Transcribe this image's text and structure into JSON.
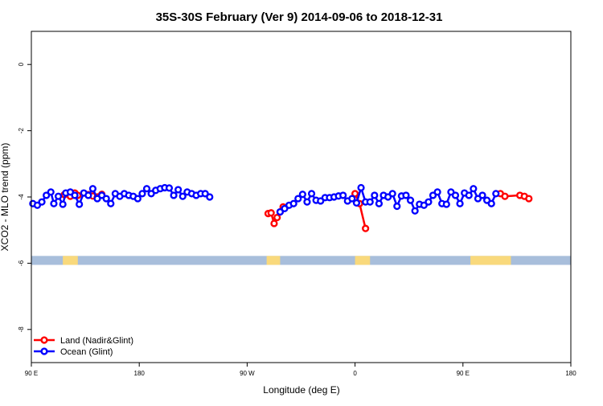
{
  "chart_data": {
    "type": "line",
    "title": "35S-30S February (Ver 9)   2014-09-06 to 2018-12-31",
    "xlabel": "Longitude (deg E)",
    "ylabel": "XCO2 - MLO trend (ppm)",
    "xlim": [
      90,
      450
    ],
    "ylim": [
      -9,
      1
    ],
    "xticks": [
      {
        "value": 90,
        "label": "90 E"
      },
      {
        "value": 162,
        "label": "180"
      },
      {
        "value": 234,
        "label": "90 W"
      },
      {
        "value": 306,
        "label": "0"
      },
      {
        "value": 378,
        "label": "90 E"
      },
      {
        "value": 450,
        "label": "180"
      }
    ],
    "yticks": [
      {
        "value": 0,
        "label": "0"
      },
      {
        "value": -2,
        "label": "-2"
      },
      {
        "value": -4,
        "label": "-4"
      },
      {
        "value": -6,
        "label": "-6"
      },
      {
        "value": -8,
        "label": "-8"
      }
    ],
    "legend_position": "bottom-left",
    "grid": false,
    "band": {
      "y_top": -5.78,
      "y_bottom": -6.05,
      "ocean_color": "#a8bedb",
      "land_color": "#f9d97c"
    },
    "land_masses": [
      {
        "x0": 111,
        "x1": 121
      },
      {
        "x0": 247,
        "x1": 256
      },
      {
        "x0": 306,
        "x1": 316
      },
      {
        "x0": 383,
        "x1": 410
      }
    ],
    "series": [
      {
        "name": "Land (Nadir&Glint)",
        "color": "#ff0000",
        "segments": [
          [
            [
              112,
              -3.93
            ],
            [
              116,
              -3.98
            ],
            [
              119,
              -3.88
            ],
            [
              121,
              -3.95
            ]
          ],
          [
            [
              128,
              -3.93
            ],
            [
              131,
              -3.97
            ],
            [
              134,
              -4.0
            ],
            [
              137,
              -3.92
            ]
          ],
          [
            [
              248,
              -4.5
            ],
            [
              250,
              -4.48
            ],
            [
              252,
              -4.8
            ],
            [
              254,
              -4.62
            ],
            [
              256,
              -4.45
            ],
            [
              258,
              -4.3
            ]
          ],
          [
            [
              306,
              -3.9
            ],
            [
              309,
              -4.2
            ],
            [
              313,
              -4.95
            ]
          ],
          [
            [
              403,
              -3.9
            ],
            [
              406,
              -3.98
            ],
            [
              416,
              -3.95
            ],
            [
              419,
              -3.98
            ],
            [
              422,
              -4.05
            ]
          ]
        ]
      },
      {
        "name": "Ocean (Glint)",
        "color": "#0000ff",
        "points": [
          [
            91,
            -4.2
          ],
          [
            94,
            -4.25
          ],
          [
            97,
            -4.15
          ],
          [
            100,
            -3.95
          ],
          [
            103,
            -3.85
          ],
          [
            105,
            -4.2
          ],
          [
            108,
            -3.98
          ],
          [
            111,
            -4.22
          ],
          [
            113,
            -3.88
          ],
          [
            116,
            -3.85
          ],
          [
            119,
            -3.95
          ],
          [
            122,
            -4.22
          ],
          [
            125,
            -3.88
          ],
          [
            128,
            -3.95
          ],
          [
            131,
            -3.75
          ],
          [
            134,
            -4.05
          ],
          [
            137,
            -3.95
          ],
          [
            140,
            -4.05
          ],
          [
            143,
            -4.2
          ],
          [
            146,
            -3.9
          ],
          [
            149,
            -3.98
          ],
          [
            152,
            -3.9
          ],
          [
            155,
            -3.95
          ],
          [
            158,
            -3.98
          ],
          [
            161,
            -4.05
          ],
          [
            164,
            -3.9
          ],
          [
            167,
            -3.75
          ],
          [
            170,
            -3.9
          ],
          [
            173,
            -3.8
          ],
          [
            176,
            -3.75
          ],
          [
            179,
            -3.72
          ],
          [
            182,
            -3.73
          ],
          [
            185,
            -3.95
          ],
          [
            188,
            -3.78
          ],
          [
            191,
            -3.98
          ],
          [
            194,
            -3.85
          ],
          [
            197,
            -3.9
          ],
          [
            200,
            -3.95
          ],
          [
            203,
            -3.9
          ],
          [
            206,
            -3.9
          ],
          [
            209,
            -4.0
          ],
          [
            256,
            -4.45
          ],
          [
            259,
            -4.35
          ],
          [
            262,
            -4.25
          ],
          [
            265,
            -4.2
          ],
          [
            268,
            -4.05
          ],
          [
            271,
            -3.92
          ],
          [
            274,
            -4.15
          ],
          [
            277,
            -3.9
          ],
          [
            280,
            -4.1
          ],
          [
            283,
            -4.12
          ],
          [
            286,
            -4.02
          ],
          [
            289,
            -4.02
          ],
          [
            292,
            -4.0
          ],
          [
            295,
            -3.97
          ],
          [
            298,
            -3.95
          ],
          [
            301,
            -4.12
          ],
          [
            304,
            -4.05
          ],
          [
            307,
            -4.18
          ],
          [
            310,
            -3.72
          ],
          [
            313,
            -4.15
          ],
          [
            316,
            -4.15
          ],
          [
            319,
            -3.95
          ],
          [
            322,
            -4.2
          ],
          [
            325,
            -3.95
          ],
          [
            328,
            -4.0
          ],
          [
            331,
            -3.9
          ],
          [
            334,
            -4.28
          ],
          [
            337,
            -3.97
          ],
          [
            340,
            -3.95
          ],
          [
            343,
            -4.1
          ],
          [
            346,
            -4.42
          ],
          [
            349,
            -4.22
          ],
          [
            352,
            -4.25
          ],
          [
            355,
            -4.15
          ],
          [
            358,
            -3.95
          ],
          [
            361,
            -3.85
          ],
          [
            364,
            -4.2
          ],
          [
            367,
            -4.22
          ],
          [
            370,
            -3.85
          ],
          [
            373,
            -3.95
          ],
          [
            376,
            -4.2
          ],
          [
            379,
            -3.88
          ],
          [
            382,
            -3.95
          ],
          [
            385,
            -3.75
          ],
          [
            388,
            -4.05
          ],
          [
            391,
            -3.95
          ],
          [
            394,
            -4.1
          ],
          [
            397,
            -4.2
          ],
          [
            400,
            -3.9
          ]
        ]
      }
    ]
  }
}
